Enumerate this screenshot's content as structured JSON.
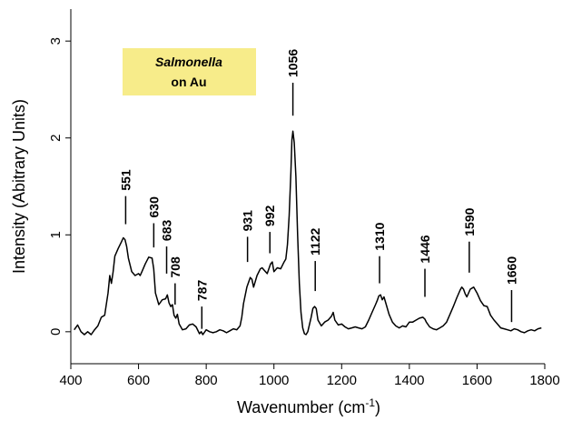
{
  "chart_data": {
    "type": "line",
    "title": "",
    "xlabel": "Wavenumber (cm",
    "xlabel_sup": "-1",
    "xlabel_end": ")",
    "ylabel": "Intensity (Abitrary Units)",
    "xlim": [
      400,
      1800
    ],
    "ylim": [
      -0.33,
      3.33
    ],
    "x_ticks": [
      400,
      600,
      800,
      1000,
      1200,
      1400,
      1600,
      1800
    ],
    "y_ticks": [
      0,
      1,
      2,
      3
    ],
    "grid": false,
    "legend": "none",
    "line_color": "#000000",
    "annotation_box": {
      "line1": "Salmonella",
      "line2": "on Au",
      "fill": "#f7ec8a"
    },
    "peak_labels": [
      {
        "label": "551",
        "x": 562,
        "y_line_top": 1.4,
        "y_line_bottom": 1.11
      },
      {
        "label": "630",
        "x": 645,
        "y_line_top": 1.12,
        "y_line_bottom": 0.87
      },
      {
        "label": "683",
        "x": 683,
        "y_line_top": 0.88,
        "y_line_bottom": 0.6
      },
      {
        "label": "708",
        "x": 708,
        "y_line_top": 0.5,
        "y_line_bottom": 0.28
      },
      {
        "label": "787",
        "x": 787,
        "y_line_top": 0.26,
        "y_line_bottom": 0.03
      },
      {
        "label": "931",
        "x": 922,
        "y_line_top": 0.98,
        "y_line_bottom": 0.72
      },
      {
        "label": "992",
        "x": 988,
        "y_line_top": 1.03,
        "y_line_bottom": 0.81
      },
      {
        "label": "1056",
        "x": 1056,
        "y_line_top": 2.57,
        "y_line_bottom": 2.23
      },
      {
        "label": "1122",
        "x": 1122,
        "y_line_top": 0.73,
        "y_line_bottom": 0.42
      },
      {
        "label": "1310",
        "x": 1312,
        "y_line_top": 0.78,
        "y_line_bottom": 0.5
      },
      {
        "label": "1446",
        "x": 1446,
        "y_line_top": 0.65,
        "y_line_bottom": 0.36
      },
      {
        "label": "1590",
        "x": 1577,
        "y_line_top": 0.93,
        "y_line_bottom": 0.61
      },
      {
        "label": "1660",
        "x": 1702,
        "y_line_top": 0.43,
        "y_line_bottom": 0.1
      }
    ],
    "series": [
      {
        "x": [
          410,
          420,
          430,
          440,
          450,
          460,
          470,
          480,
          490,
          500,
          510,
          515,
          520,
          525,
          530,
          540,
          550,
          555,
          560,
          565,
          570,
          580,
          590,
          600,
          605,
          610,
          620,
          630,
          640,
          645,
          650,
          660,
          670,
          680,
          685,
          690,
          695,
          700,
          705,
          710,
          715,
          720,
          730,
          740,
          750,
          760,
          770,
          780,
          785,
          790,
          800,
          810,
          820,
          830,
          840,
          850,
          860,
          870,
          880,
          890,
          900,
          905,
          910,
          920,
          930,
          935,
          940,
          950,
          960,
          965,
          970,
          980,
          990,
          995,
          1000,
          1010,
          1020,
          1030,
          1035,
          1040,
          1045,
          1050,
          1053,
          1056,
          1060,
          1065,
          1070,
          1075,
          1080,
          1085,
          1090,
          1095,
          1100,
          1110,
          1115,
          1120,
          1125,
          1130,
          1140,
          1150,
          1160,
          1170,
          1175,
          1180,
          1190,
          1200,
          1210,
          1220,
          1230,
          1240,
          1250,
          1260,
          1270,
          1280,
          1290,
          1300,
          1305,
          1310,
          1315,
          1320,
          1325,
          1330,
          1340,
          1350,
          1360,
          1370,
          1380,
          1390,
          1400,
          1410,
          1420,
          1430,
          1440,
          1446,
          1450,
          1460,
          1470,
          1480,
          1490,
          1500,
          1510,
          1520,
          1530,
          1540,
          1550,
          1555,
          1560,
          1565,
          1570,
          1580,
          1590,
          1600,
          1610,
          1620,
          1630,
          1640,
          1650,
          1660,
          1670,
          1680,
          1690,
          1700,
          1710,
          1720,
          1730,
          1740,
          1750,
          1760,
          1770,
          1780,
          1790
        ],
        "y": [
          0.02,
          0.07,
          0.0,
          -0.03,
          0.0,
          -0.03,
          0.02,
          0.06,
          0.15,
          0.17,
          0.4,
          0.58,
          0.5,
          0.62,
          0.78,
          0.86,
          0.93,
          0.97,
          0.95,
          0.88,
          0.76,
          0.62,
          0.58,
          0.6,
          0.58,
          0.62,
          0.7,
          0.77,
          0.76,
          0.65,
          0.4,
          0.28,
          0.33,
          0.34,
          0.38,
          0.3,
          0.26,
          0.28,
          0.17,
          0.14,
          0.18,
          0.08,
          0.02,
          0.03,
          0.07,
          0.08,
          0.05,
          -0.02,
          0.0,
          -0.03,
          0.02,
          0.0,
          -0.01,
          0.0,
          0.02,
          0.01,
          -0.01,
          0.01,
          0.03,
          0.02,
          0.06,
          0.15,
          0.29,
          0.46,
          0.56,
          0.54,
          0.46,
          0.58,
          0.65,
          0.66,
          0.64,
          0.6,
          0.7,
          0.72,
          0.62,
          0.66,
          0.65,
          0.72,
          0.75,
          0.9,
          1.2,
          1.65,
          1.98,
          2.07,
          1.95,
          1.6,
          1.0,
          0.5,
          0.2,
          0.04,
          -0.02,
          -0.03,
          0.0,
          0.15,
          0.24,
          0.26,
          0.24,
          0.12,
          0.06,
          0.1,
          0.12,
          0.16,
          0.2,
          0.12,
          0.07,
          0.08,
          0.05,
          0.03,
          0.04,
          0.05,
          0.04,
          0.03,
          0.05,
          0.12,
          0.2,
          0.28,
          0.32,
          0.37,
          0.38,
          0.33,
          0.36,
          0.3,
          0.18,
          0.1,
          0.06,
          0.04,
          0.06,
          0.05,
          0.1,
          0.1,
          0.12,
          0.14,
          0.15,
          0.13,
          0.1,
          0.05,
          0.03,
          0.02,
          0.04,
          0.06,
          0.1,
          0.18,
          0.26,
          0.35,
          0.43,
          0.46,
          0.44,
          0.39,
          0.36,
          0.44,
          0.46,
          0.4,
          0.32,
          0.27,
          0.26,
          0.17,
          0.12,
          0.08,
          0.04,
          0.03,
          0.02,
          0.01,
          0.03,
          0.02,
          0.0,
          -0.01,
          0.01,
          0.02,
          0.01,
          0.03,
          0.04
        ]
      }
    ]
  }
}
